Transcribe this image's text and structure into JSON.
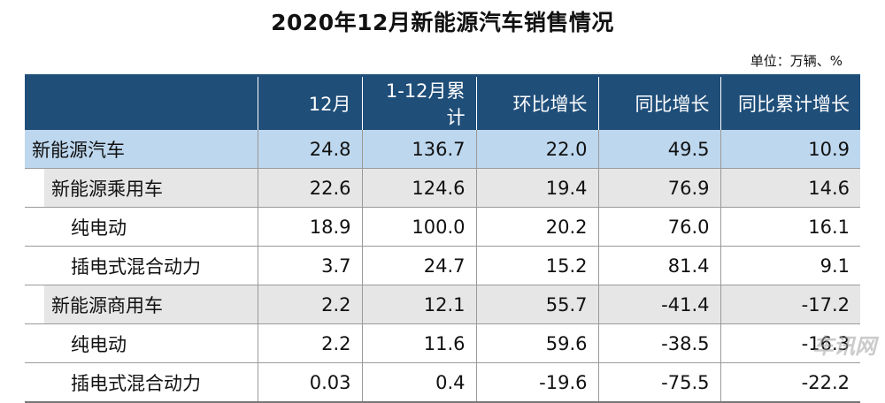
{
  "title": "2020年12月新能源汽车销售情况",
  "unit": "单位：万辆、%",
  "watermark": "车讯网",
  "columns": [
    "",
    "12月",
    "1-12月累计",
    "环比增长",
    "同比增长",
    "同比累计增长"
  ],
  "rows": [
    {
      "name": "新能源汽车",
      "values": [
        "24.8",
        "136.7",
        "22.0",
        "49.5",
        "10.9"
      ]
    },
    {
      "name": "新能源乘用车",
      "values": [
        "22.6",
        "124.6",
        "19.4",
        "76.9",
        "14.6"
      ]
    },
    {
      "name": "纯电动",
      "values": [
        "18.9",
        "100.0",
        "20.2",
        "76.0",
        "16.1"
      ]
    },
    {
      "name": "插电式混合动力",
      "values": [
        "3.7",
        "24.7",
        "15.2",
        "81.4",
        "9.1"
      ]
    },
    {
      "name": "新能源商用车",
      "values": [
        "2.2",
        "12.1",
        "55.7",
        "-41.4",
        "-17.2"
      ]
    },
    {
      "name": "纯电动",
      "values": [
        "2.2",
        "11.6",
        "59.6",
        "-38.5",
        "-16.3"
      ]
    },
    {
      "name": "插电式混合动力",
      "values": [
        "0.03",
        "0.4",
        "-19.6",
        "-75.5",
        "-22.2"
      ]
    }
  ],
  "colors": {
    "header_bg": "#1f4e79",
    "highlight_row": "#bdd7ee",
    "sub_row": "#e7e6e6"
  }
}
